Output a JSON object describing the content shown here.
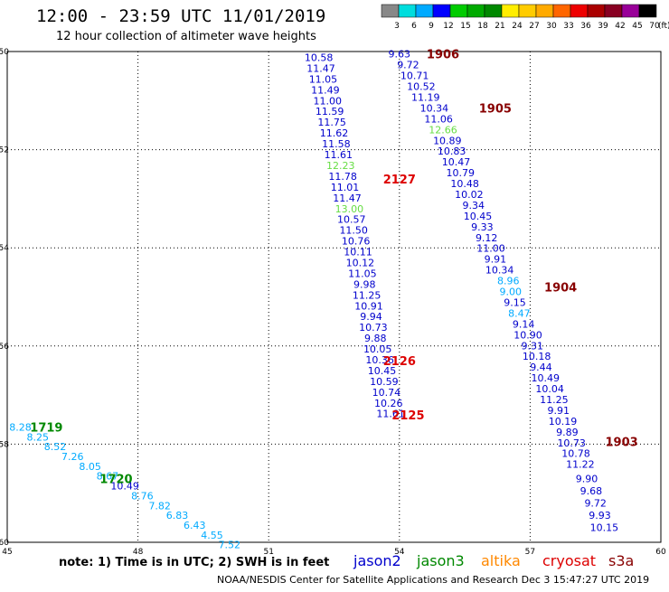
{
  "title": "12:00 - 23:59 UTC 11/01/2019",
  "subtitle": "12 hour collection of altimeter wave heights",
  "note": "note: 1) Time is in UTC; 2) SWH is in feet",
  "footer": "NOAA/NESDIS Center for Satellite Applications and Research    Dec  3 15:47:27 UTC 2019",
  "satellites": [
    {
      "name": "jason2",
      "color": "#0000cc"
    },
    {
      "name": "jason3",
      "color": "#008800"
    },
    {
      "name": "altika",
      "color": "#ff8800"
    },
    {
      "name": "cryosat",
      "color": "#dd0000"
    },
    {
      "name": "s3a",
      "color": "#880000"
    }
  ],
  "color_scale": {
    "unit": "(ft)",
    "labels": [
      "3",
      "6",
      "9",
      "12",
      "15",
      "18",
      "21",
      "24",
      "27",
      "30",
      "33",
      "36",
      "39",
      "42",
      "45",
      "70"
    ],
    "colors": [
      "#888888",
      "#00dddd",
      "#00aaff",
      "#0000ff",
      "#00cc00",
      "#00aa00",
      "#008800",
      "#ffee00",
      "#ffcc00",
      "#ffaa00",
      "#ff6600",
      "#ee0000",
      "#aa0000",
      "#880022",
      "#990099",
      "#000000"
    ]
  },
  "chart_data": {
    "type": "scatter",
    "xlim": [
      45,
      60
    ],
    "ylim": [
      -60,
      -50
    ],
    "x_ticks": [
      45,
      48,
      51,
      54,
      57,
      60
    ],
    "y_ticks": [
      -50,
      -52,
      -54,
      -56,
      -58,
      -60
    ],
    "grid": true,
    "series": [
      {
        "name": "2127",
        "color_role": "cryosat",
        "points": [
          {
            "lon": 52.15,
            "lat": -50.12,
            "swh": "10.58",
            "color": "#0000cc"
          },
          {
            "lon": 52.2,
            "lat": -50.34,
            "swh": "11.47",
            "color": "#0000cc"
          },
          {
            "lon": 52.25,
            "lat": -50.56,
            "swh": "11.05",
            "color": "#0000cc"
          },
          {
            "lon": 52.3,
            "lat": -50.78,
            "swh": "11.49",
            "color": "#0000cc"
          },
          {
            "lon": 52.35,
            "lat": -51.0,
            "swh": "11.00",
            "color": "#0000cc"
          },
          {
            "lon": 52.4,
            "lat": -51.22,
            "swh": "11.59",
            "color": "#0000cc"
          },
          {
            "lon": 52.45,
            "lat": -51.44,
            "swh": "11.75",
            "color": "#0000cc"
          },
          {
            "lon": 52.5,
            "lat": -51.66,
            "swh": "11.62",
            "color": "#0000cc"
          },
          {
            "lon": 52.55,
            "lat": -51.88,
            "swh": "11.58",
            "color": "#0000cc"
          },
          {
            "lon": 52.6,
            "lat": -52.1,
            "swh": "11.61",
            "color": "#0000cc"
          },
          {
            "lon": 52.65,
            "lat": -52.32,
            "swh": "12.23",
            "color": "#66dd44"
          },
          {
            "lon": 52.7,
            "lat": -52.54,
            "swh": "11.78",
            "color": "#0000cc"
          },
          {
            "lon": 52.75,
            "lat": -52.76,
            "swh": "11.01",
            "color": "#0000cc"
          },
          {
            "lon": 52.8,
            "lat": -52.98,
            "swh": "11.47",
            "color": "#0000cc"
          },
          {
            "lon": 52.85,
            "lat": -53.2,
            "swh": "13.00",
            "color": "#66dd44"
          },
          {
            "lon": 52.9,
            "lat": -53.42,
            "swh": "10.57",
            "color": "#0000cc"
          },
          {
            "lon": 52.95,
            "lat": -53.64,
            "swh": "11.50",
            "color": "#0000cc"
          },
          {
            "lon": 53.0,
            "lat": -53.86,
            "swh": "10.76",
            "color": "#0000cc"
          },
          {
            "lon": 53.05,
            "lat": -54.08,
            "swh": "10.11",
            "color": "#0000cc"
          },
          {
            "lon": 53.1,
            "lat": -54.3,
            "swh": "10.12",
            "color": "#0000cc"
          },
          {
            "lon": 53.15,
            "lat": -54.52,
            "swh": "11.05",
            "color": "#0000cc"
          },
          {
            "lon": 53.2,
            "lat": -54.74,
            "swh": "9.98",
            "color": "#0000cc"
          },
          {
            "lon": 53.25,
            "lat": -54.96,
            "swh": "11.25",
            "color": "#0000cc"
          },
          {
            "lon": 53.3,
            "lat": -55.18,
            "swh": "10.91",
            "color": "#0000cc"
          },
          {
            "lon": 53.35,
            "lat": -55.4,
            "swh": "9.94",
            "color": "#0000cc"
          },
          {
            "lon": 53.4,
            "lat": -55.62,
            "swh": "10.73",
            "color": "#0000cc"
          },
          {
            "lon": 53.45,
            "lat": -55.84,
            "swh": "9.88",
            "color": "#0000cc"
          }
        ]
      },
      {
        "name": "2126",
        "color_role": "cryosat",
        "points": [
          {
            "lon": 53.5,
            "lat": -56.06,
            "swh": "10.05",
            "color": "#0000cc"
          },
          {
            "lon": 53.55,
            "lat": -56.28,
            "swh": "10.36",
            "color": "#0000cc"
          },
          {
            "lon": 53.6,
            "lat": -56.5,
            "swh": "10.45",
            "color": "#0000cc"
          },
          {
            "lon": 53.65,
            "lat": -56.72,
            "swh": "10.59",
            "color": "#0000cc"
          },
          {
            "lon": 53.7,
            "lat": -56.94,
            "swh": "10.74",
            "color": "#0000cc"
          },
          {
            "lon": 53.75,
            "lat": -57.16,
            "swh": "10.26",
            "color": "#0000cc"
          }
        ]
      },
      {
        "name": "2125",
        "color_role": "cryosat",
        "points": [
          {
            "lon": 53.8,
            "lat": -57.38,
            "swh": "11.61",
            "color": "#0000cc"
          }
        ]
      },
      {
        "name": "1906",
        "color_role": "s3a",
        "points": [
          {
            "lon": 54.0,
            "lat": -50.05,
            "swh": "9.63",
            "color": "#0000cc"
          },
          {
            "lon": 54.2,
            "lat": -50.27,
            "swh": "9.72",
            "color": "#0000cc"
          },
          {
            "lon": 54.35,
            "lat": -50.49,
            "swh": "10.71",
            "color": "#0000cc"
          },
          {
            "lon": 54.5,
            "lat": -50.71,
            "swh": "10.52",
            "color": "#0000cc"
          },
          {
            "lon": 54.6,
            "lat": -50.93,
            "swh": "11.19",
            "color": "#0000cc"
          }
        ]
      },
      {
        "name": "1905",
        "color_role": "s3a",
        "points": [
          {
            "lon": 54.8,
            "lat": -51.15,
            "swh": "10.34",
            "color": "#0000cc"
          },
          {
            "lon": 54.9,
            "lat": -51.37,
            "swh": "11.06",
            "color": "#0000cc"
          },
          {
            "lon": 55.0,
            "lat": -51.59,
            "swh": "12.66",
            "color": "#66dd44"
          },
          {
            "lon": 55.1,
            "lat": -51.81,
            "swh": "10.89",
            "color": "#0000cc"
          },
          {
            "lon": 55.2,
            "lat": -52.03,
            "swh": "10.83",
            "color": "#0000cc"
          },
          {
            "lon": 55.3,
            "lat": -52.25,
            "swh": "10.47",
            "color": "#0000cc"
          },
          {
            "lon": 55.4,
            "lat": -52.47,
            "swh": "10.79",
            "color": "#0000cc"
          },
          {
            "lon": 55.5,
            "lat": -52.69,
            "swh": "10.48",
            "color": "#0000cc"
          },
          {
            "lon": 55.6,
            "lat": -52.91,
            "swh": "10.02",
            "color": "#0000cc"
          },
          {
            "lon": 55.7,
            "lat": -53.13,
            "swh": "9.34",
            "color": "#0000cc"
          },
          {
            "lon": 55.8,
            "lat": -53.35,
            "swh": "10.45",
            "color": "#0000cc"
          },
          {
            "lon": 55.9,
            "lat": -53.57,
            "swh": "9.33",
            "color": "#0000cc"
          },
          {
            "lon": 56.0,
            "lat": -53.79,
            "swh": "9.12",
            "color": "#0000cc"
          },
          {
            "lon": 56.1,
            "lat": -54.01,
            "swh": "11.00",
            "color": "#0000cc"
          },
          {
            "lon": 56.2,
            "lat": -54.23,
            "swh": "9.91",
            "color": "#0000cc"
          },
          {
            "lon": 56.3,
            "lat": -54.45,
            "swh": "10.34",
            "color": "#0000cc"
          }
        ]
      },
      {
        "name": "1904",
        "color_role": "s3a",
        "points": [
          {
            "lon": 56.5,
            "lat": -54.67,
            "swh": "8.96",
            "color": "#00aaff"
          },
          {
            "lon": 56.55,
            "lat": -54.89,
            "swh": "9.00",
            "color": "#00aaff"
          },
          {
            "lon": 56.65,
            "lat": -55.11,
            "swh": "9.15",
            "color": "#0000cc"
          },
          {
            "lon": 56.75,
            "lat": -55.33,
            "swh": "8.47",
            "color": "#00aaff"
          },
          {
            "lon": 56.85,
            "lat": -55.55,
            "swh": "9.14",
            "color": "#0000cc"
          },
          {
            "lon": 56.95,
            "lat": -55.77,
            "swh": "10.90",
            "color": "#0000cc"
          },
          {
            "lon": 57.05,
            "lat": -55.99,
            "swh": "9.31",
            "color": "#0000cc"
          },
          {
            "lon": 57.15,
            "lat": -56.21,
            "swh": "10.18",
            "color": "#0000cc"
          },
          {
            "lon": 57.25,
            "lat": -56.43,
            "swh": "9.44",
            "color": "#0000cc"
          },
          {
            "lon": 57.35,
            "lat": -56.65,
            "swh": "10.49",
            "color": "#0000cc"
          },
          {
            "lon": 57.45,
            "lat": -56.87,
            "swh": "10.04",
            "color": "#0000cc"
          },
          {
            "lon": 57.55,
            "lat": -57.09,
            "swh": "11.25",
            "color": "#0000cc"
          },
          {
            "lon": 57.65,
            "lat": -57.31,
            "swh": "9.91",
            "color": "#0000cc"
          },
          {
            "lon": 57.75,
            "lat": -57.53,
            "swh": "10.19",
            "color": "#0000cc"
          },
          {
            "lon": 57.85,
            "lat": -57.75,
            "swh": "9.89",
            "color": "#0000cc"
          }
        ]
      },
      {
        "name": "1903",
        "color_role": "s3a",
        "points": [
          {
            "lon": 57.95,
            "lat": -57.97,
            "swh": "10.73",
            "color": "#0000cc"
          },
          {
            "lon": 58.05,
            "lat": -58.19,
            "swh": "10.78",
            "color": "#0000cc"
          },
          {
            "lon": 58.15,
            "lat": -58.41,
            "swh": "11.22",
            "color": "#0000cc"
          },
          {
            "lon": 58.3,
            "lat": -58.7,
            "swh": "9.90",
            "color": "#0000cc"
          },
          {
            "lon": 58.4,
            "lat": -58.95,
            "swh": "9.68",
            "color": "#0000cc"
          },
          {
            "lon": 58.5,
            "lat": -59.2,
            "swh": "9.72",
            "color": "#0000cc"
          },
          {
            "lon": 58.6,
            "lat": -59.45,
            "swh": "9.93",
            "color": "#0000cc"
          },
          {
            "lon": 58.7,
            "lat": -59.7,
            "swh": "10.15",
            "color": "#0000cc"
          }
        ]
      },
      {
        "name": "1719",
        "color_role": "jason3",
        "points": [
          {
            "lon": 45.3,
            "lat": -57.65,
            "swh": "8.28",
            "color": "#00aaff"
          },
          {
            "lon": 45.7,
            "lat": -57.85,
            "swh": "8.25",
            "color": "#00aaff"
          },
          {
            "lon": 46.1,
            "lat": -58.05,
            "swh": "8.52",
            "color": "#00aaff"
          },
          {
            "lon": 46.5,
            "lat": -58.25,
            "swh": "7.26",
            "color": "#00aaff"
          },
          {
            "lon": 46.9,
            "lat": -58.45,
            "swh": "8.05",
            "color": "#00aaff"
          },
          {
            "lon": 47.3,
            "lat": -58.65,
            "swh": "8.67",
            "color": "#00aaff"
          }
        ]
      },
      {
        "name": "1720",
        "color_role": "jason3",
        "points": [
          {
            "lon": 47.7,
            "lat": -58.85,
            "swh": "10.49",
            "color": "#0000cc"
          },
          {
            "lon": 48.1,
            "lat": -59.05,
            "swh": "8.76",
            "color": "#00aaff"
          },
          {
            "lon": 48.5,
            "lat": -59.25,
            "swh": "7.82",
            "color": "#00aaff"
          },
          {
            "lon": 48.9,
            "lat": -59.45,
            "swh": "6.83",
            "color": "#00aaff"
          },
          {
            "lon": 49.3,
            "lat": -59.65,
            "swh": "6.43",
            "color": "#00aaff"
          },
          {
            "lon": 49.7,
            "lat": -59.85,
            "swh": "4.55",
            "color": "#00aaff"
          },
          {
            "lon": 50.1,
            "lat": -60.05,
            "swh": "7.52",
            "color": "#00aaff"
          }
        ]
      }
    ],
    "pass_labels": [
      {
        "text": "1906",
        "lon": 55.0,
        "lat": -50.05,
        "color": "#880000"
      },
      {
        "text": "1905",
        "lon": 56.2,
        "lat": -51.15,
        "color": "#880000"
      },
      {
        "text": "2127",
        "lon": 54.0,
        "lat": -52.6,
        "color": "#dd0000"
      },
      {
        "text": "1904",
        "lon": 57.7,
        "lat": -54.8,
        "color": "#880000"
      },
      {
        "text": "2126",
        "lon": 54.0,
        "lat": -56.3,
        "color": "#dd0000"
      },
      {
        "text": "2125",
        "lon": 54.2,
        "lat": -57.4,
        "color": "#dd0000"
      },
      {
        "text": "1903",
        "lon": 59.1,
        "lat": -57.95,
        "color": "#880000"
      },
      {
        "text": "1719",
        "lon": 45.9,
        "lat": -57.65,
        "color": "#008800"
      },
      {
        "text": "1720",
        "lon": 47.5,
        "lat": -58.7,
        "color": "#008800"
      }
    ]
  }
}
